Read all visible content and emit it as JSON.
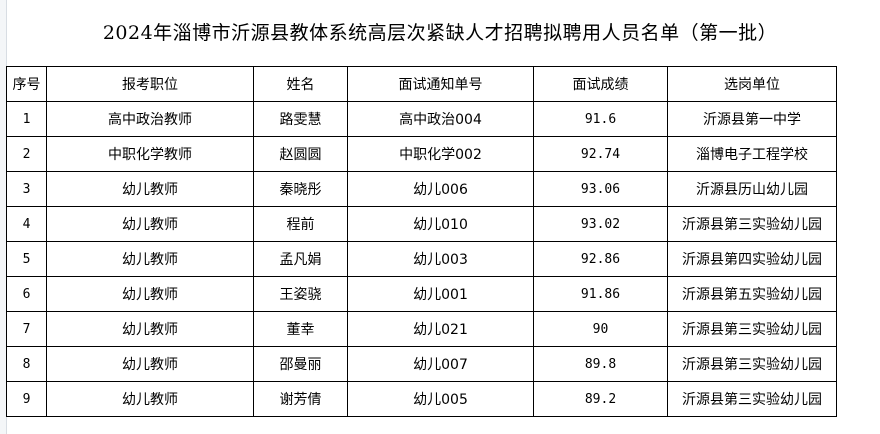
{
  "title": "2024年淄博市沂源县教体系统高层次紧缺人才招聘拟聘用人员名单（第一批）",
  "headers": [
    "序号",
    "报考职位",
    "姓名",
    "面试通知单号",
    "面试成绩",
    "选岗单位"
  ],
  "rows": [
    [
      "1",
      "高中政治教师",
      "路雯慧",
      "高中政治004",
      "91.6",
      "沂源县第一中学"
    ],
    [
      "2",
      "中职化学教师",
      "赵圆圆",
      "中职化学002",
      "92.74",
      "淄博电子工程学校"
    ],
    [
      "3",
      "幼儿教师",
      "秦晓彤",
      "幼儿006",
      "93.06",
      "沂源县历山幼儿园"
    ],
    [
      "4",
      "幼儿教师",
      "程前",
      "幼儿010",
      "93.02",
      "沂源县第三实验幼儿园"
    ],
    [
      "5",
      "幼儿教师",
      "孟凡娟",
      "幼儿003",
      "92.86",
      "沂源县第四实验幼儿园"
    ],
    [
      "6",
      "幼儿教师",
      "王姿骁",
      "幼儿001",
      "91.86",
      "沂源县第五实验幼儿园"
    ],
    [
      "7",
      "幼儿教师",
      "董幸",
      "幼儿021",
      "90",
      "沂源县第三实验幼儿园"
    ],
    [
      "8",
      "幼儿教师",
      "邵曼丽",
      "幼儿007",
      "89.8",
      "沂源县第三实验幼儿园"
    ],
    [
      "9",
      "幼儿教师",
      "谢芳倩",
      "幼儿005",
      "89.2",
      "沂源县第三实验幼儿园"
    ]
  ]
}
